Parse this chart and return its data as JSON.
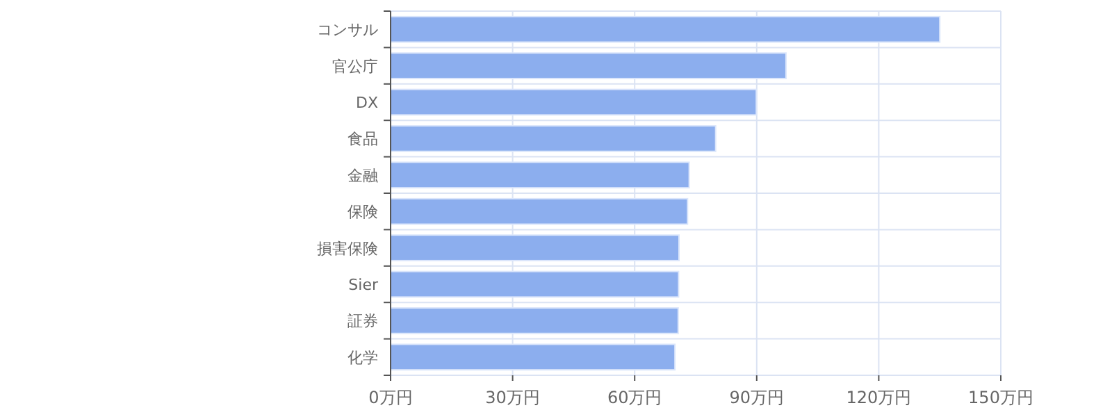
{
  "chart_data": {
    "type": "bar",
    "orientation": "horizontal",
    "categories": [
      "コンサル",
      "官公庁",
      "DX",
      "食品",
      "金融",
      "保険",
      "損害保険",
      "Sier",
      "証券",
      "化学"
    ],
    "values": [
      135,
      97.2,
      89.9,
      79.9,
      73.4,
      73.0,
      70.9,
      70.8,
      70.7,
      69.9
    ],
    "color": "#8caeee",
    "xlim": [
      0,
      150
    ],
    "xticks": [
      {
        "value": 0,
        "label": "0万円"
      },
      {
        "value": 30,
        "label": "30万円"
      },
      {
        "value": 60,
        "label": "60万円"
      },
      {
        "value": 90,
        "label": "90万円"
      },
      {
        "value": 120,
        "label": "120万円"
      },
      {
        "value": 150,
        "label": "150万円"
      }
    ],
    "grid": true
  }
}
